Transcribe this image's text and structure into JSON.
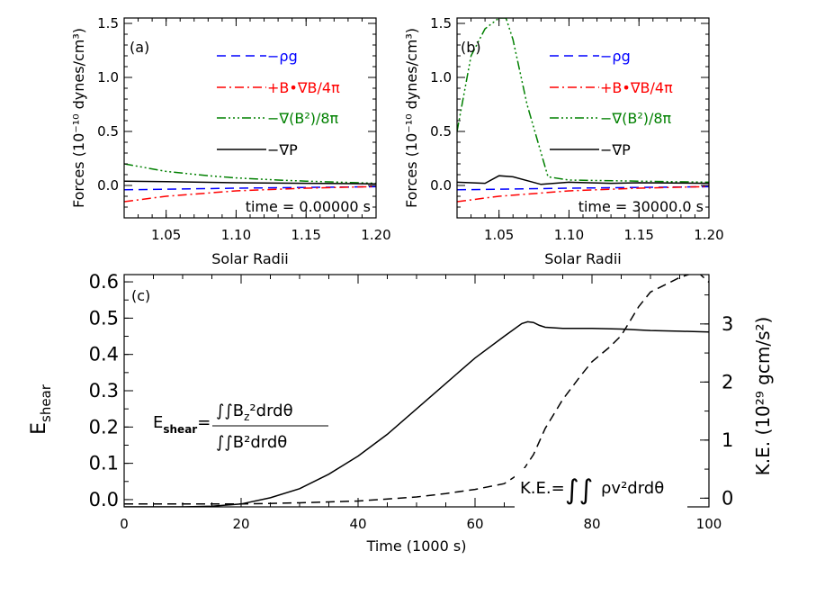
{
  "chart_data": [
    {
      "id": "a",
      "type": "line",
      "panel_label": "(a)",
      "xlabel": "Solar Radii",
      "ylabel": "Forces (10⁻¹⁰ dynes/cm³)",
      "xlim": [
        1.02,
        1.2
      ],
      "ylim": [
        -0.3,
        1.55
      ],
      "xticks": [
        "1.05",
        "1.10",
        "1.15",
        "1.20"
      ],
      "yticks": [
        "0.0",
        "0.5",
        "1.0",
        "1.5"
      ],
      "annotation": "time = 0.00000 s",
      "legend_position": "top-right",
      "series": [
        {
          "name": "−ρg",
          "color": "#0000ff",
          "dash": "dashed",
          "x": [
            1.02,
            1.05,
            1.1,
            1.15,
            1.2
          ],
          "y": [
            -0.04,
            -0.035,
            -0.025,
            -0.018,
            -0.012
          ]
        },
        {
          "name": "+B•∇B/4π",
          "color": "#ff0000",
          "dash": "dashdot",
          "x": [
            1.02,
            1.05,
            1.08,
            1.1,
            1.13,
            1.15,
            1.2
          ],
          "y": [
            -0.15,
            -0.1,
            -0.07,
            -0.05,
            -0.035,
            -0.025,
            -0.01
          ]
        },
        {
          "name": "−∇(B²)/8π",
          "color": "#008000",
          "dash": "dashdotdotdot",
          "x": [
            1.02,
            1.05,
            1.08,
            1.1,
            1.13,
            1.15,
            1.2
          ],
          "y": [
            0.2,
            0.13,
            0.09,
            0.07,
            0.05,
            0.04,
            0.02
          ]
        },
        {
          "name": "−∇P",
          "color": "#000000",
          "dash": "solid",
          "x": [
            1.02,
            1.05,
            1.1,
            1.15,
            1.2
          ],
          "y": [
            0.04,
            0.035,
            0.025,
            0.02,
            0.015
          ]
        }
      ]
    },
    {
      "id": "b",
      "type": "line",
      "panel_label": "(b)",
      "xlabel": "Solar Radii",
      "ylabel": "Forces (10⁻¹⁰ dynes/cm³)",
      "xlim": [
        1.02,
        1.2
      ],
      "ylim": [
        -0.3,
        1.55
      ],
      "xticks": [
        "1.05",
        "1.10",
        "1.15",
        "1.20"
      ],
      "yticks": [
        "0.0",
        "0.5",
        "1.0",
        "1.5"
      ],
      "annotation": "time = 30000.0 s",
      "legend_position": "top-right",
      "series": [
        {
          "name": "−ρg",
          "color": "#0000ff",
          "dash": "dashed",
          "x": [
            1.02,
            1.05,
            1.1,
            1.15,
            1.2
          ],
          "y": [
            -0.04,
            -0.035,
            -0.025,
            -0.018,
            -0.012
          ]
        },
        {
          "name": "+B•∇B/4π",
          "color": "#ff0000",
          "dash": "dashdot",
          "x": [
            1.02,
            1.05,
            1.08,
            1.1,
            1.13,
            1.15,
            1.2
          ],
          "y": [
            -0.15,
            -0.1,
            -0.07,
            -0.05,
            -0.035,
            -0.025,
            -0.01
          ]
        },
        {
          "name": "−∇(B²)/8π",
          "color": "#008000",
          "dash": "dashdotdotdot",
          "x": [
            1.02,
            1.03,
            1.04,
            1.05,
            1.055,
            1.06,
            1.07,
            1.085,
            1.1,
            1.15,
            1.2
          ],
          "y": [
            0.5,
            1.2,
            1.45,
            1.55,
            1.55,
            1.35,
            0.75,
            0.08,
            0.05,
            0.04,
            0.03
          ]
        },
        {
          "name": "−∇P",
          "color": "#000000",
          "dash": "solid",
          "x": [
            1.02,
            1.04,
            1.05,
            1.06,
            1.08,
            1.1,
            1.13,
            1.15,
            1.2
          ],
          "y": [
            0.03,
            0.02,
            0.09,
            0.08,
            0.01,
            0.03,
            0.02,
            0.025,
            0.02
          ]
        }
      ]
    },
    {
      "id": "c",
      "type": "line",
      "panel_label": "(c)",
      "xlabel": "Time (1000 s)",
      "ylabel": "E_shear",
      "ylabel_right": "K.E. (10²⁹ gcm/s²)",
      "xlim": [
        0,
        100
      ],
      "ylim": [
        -0.02,
        0.62
      ],
      "ylim_right": [
        -0.15,
        3.85
      ],
      "xticks": [
        "0",
        "20",
        "40",
        "60",
        "80",
        "100"
      ],
      "yticks": [
        "0.0",
        "0.1",
        "0.2",
        "0.3",
        "0.4",
        "0.5",
        "0.6"
      ],
      "yticks_right": [
        "0",
        "1",
        "2",
        "3"
      ],
      "series": [
        {
          "name": "E_shear",
          "axis": "left",
          "color": "#000000",
          "dash": "solid",
          "x": [
            0,
            10,
            15,
            20,
            25,
            30,
            35,
            40,
            45,
            50,
            55,
            60,
            65,
            68,
            69,
            70,
            71,
            72,
            75,
            80,
            85,
            90,
            95,
            100
          ],
          "y": [
            -0.02,
            -0.02,
            -0.018,
            -0.012,
            0.005,
            0.03,
            0.07,
            0.12,
            0.18,
            0.25,
            0.32,
            0.39,
            0.45,
            0.485,
            0.49,
            0.488,
            0.48,
            0.475,
            0.472,
            0.472,
            0.47,
            0.466,
            0.464,
            0.462
          ]
        },
        {
          "name": "K.E.",
          "axis": "right",
          "color": "#000000",
          "dash": "dashed",
          "x": [
            0,
            20,
            30,
            40,
            50,
            55,
            60,
            65,
            68,
            70,
            72,
            75,
            78,
            80,
            83,
            85,
            88,
            90,
            93,
            95,
            98,
            100
          ],
          "y": [
            -0.1,
            -0.1,
            -0.08,
            -0.05,
            0.02,
            0.08,
            0.15,
            0.25,
            0.45,
            0.75,
            1.2,
            1.7,
            2.1,
            2.35,
            2.6,
            2.8,
            3.3,
            3.55,
            3.7,
            3.8,
            3.9,
            3.72
          ]
        }
      ]
    }
  ],
  "formulas": {
    "eshear_lhs": "E",
    "eshear_sub": "shear",
    "eshear_num": "∫∫B",
    "eshear_num_sub": "z",
    "eshear_num_rest": "²drdθ",
    "eshear_den": "∫∫B²drdθ",
    "ke": "K.E.=",
    "ke_integrand": "ρv²drdθ"
  }
}
